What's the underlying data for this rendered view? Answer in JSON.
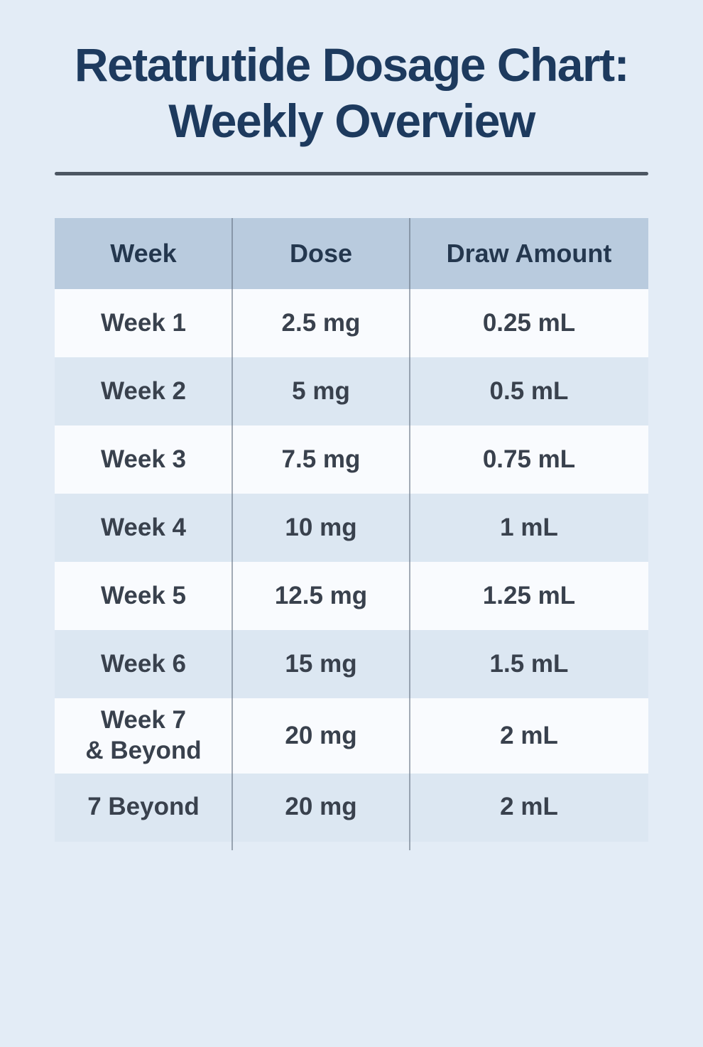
{
  "page": {
    "background": "#e3ecf6"
  },
  "title": {
    "line1": "Retatrutide Dosage Chart:",
    "line2": "Weekly Overview",
    "color": "#1d3a5e"
  },
  "table": {
    "headers": [
      "Week",
      "Dose",
      "Draw Amount"
    ],
    "rows": [
      [
        "Week 1",
        "2.5 mg",
        "0.25 mL"
      ],
      [
        "Week 2",
        "5 mg",
        "0.5 mL"
      ],
      [
        "Week 3",
        "7.5 mg",
        "0.75 mL"
      ],
      [
        "Week 4",
        "10 mg",
        "1 mL"
      ],
      [
        "Week 5",
        "12.5 mg",
        "1.25 mL"
      ],
      [
        "Week 6",
        "15 mg",
        "1.5 mL"
      ],
      [
        "Week 7\n& Beyond",
        "20 mg",
        "2 mL"
      ],
      [
        "7 Beyond",
        "20 mg",
        "2 mL"
      ]
    ],
    "colors": {
      "header_bg": "#b9cbde",
      "row_blue": "#dce7f2",
      "row_white": "#f9fbfe",
      "header_text": "#24374e",
      "cell_text": "#39414d",
      "title_divider": "#4c5662",
      "column_divider": "#687584"
    }
  },
  "chart_data": {
    "type": "table",
    "title": "Retatrutide Dosage Chart: Weekly Overview",
    "columns": [
      "Week",
      "Dose",
      "Draw Amount"
    ],
    "rows": [
      [
        "Week 1",
        "2.5 mg",
        "0.25 mL"
      ],
      [
        "Week 2",
        "5 mg",
        "0.5 mL"
      ],
      [
        "Week 3",
        "7.5 mg",
        "0.75 mL"
      ],
      [
        "Week 4",
        "10 mg",
        "1 mL"
      ],
      [
        "Week 5",
        "12.5 mg",
        "1.25 mL"
      ],
      [
        "Week 6",
        "15 mg",
        "1.5 mL"
      ],
      [
        "Week 7 & Beyond",
        "20 mg",
        "2 mL"
      ],
      [
        "7 Beyond",
        "20 mg",
        "2 mL"
      ]
    ],
    "dose_mg": [
      2.5,
      5,
      7.5,
      10,
      12.5,
      15,
      20,
      20
    ],
    "draw_ml": [
      0.25,
      0.5,
      0.75,
      1,
      1.25,
      1.5,
      2,
      2
    ]
  }
}
